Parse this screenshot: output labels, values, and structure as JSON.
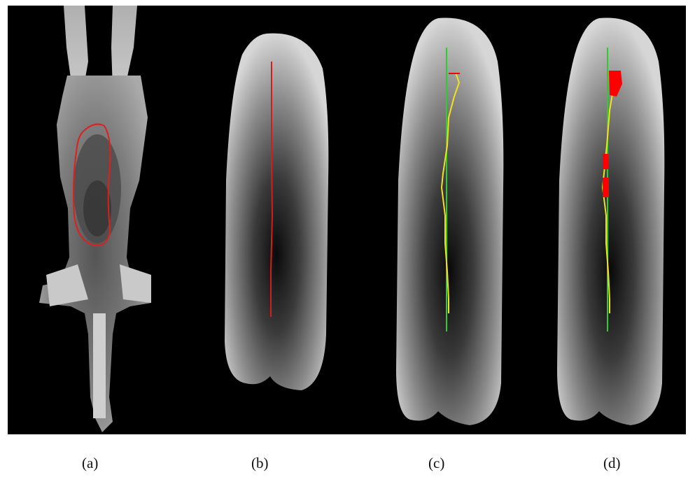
{
  "captions": {
    "a": "(a)",
    "b": "(b)",
    "c": "(c)",
    "d": "(d)"
  },
  "colors": {
    "background": "#000000",
    "contour": "#e11d1d",
    "centerline": "#2ecc2e",
    "deviation": "#f2e21a",
    "marker": "#ff0000"
  }
}
